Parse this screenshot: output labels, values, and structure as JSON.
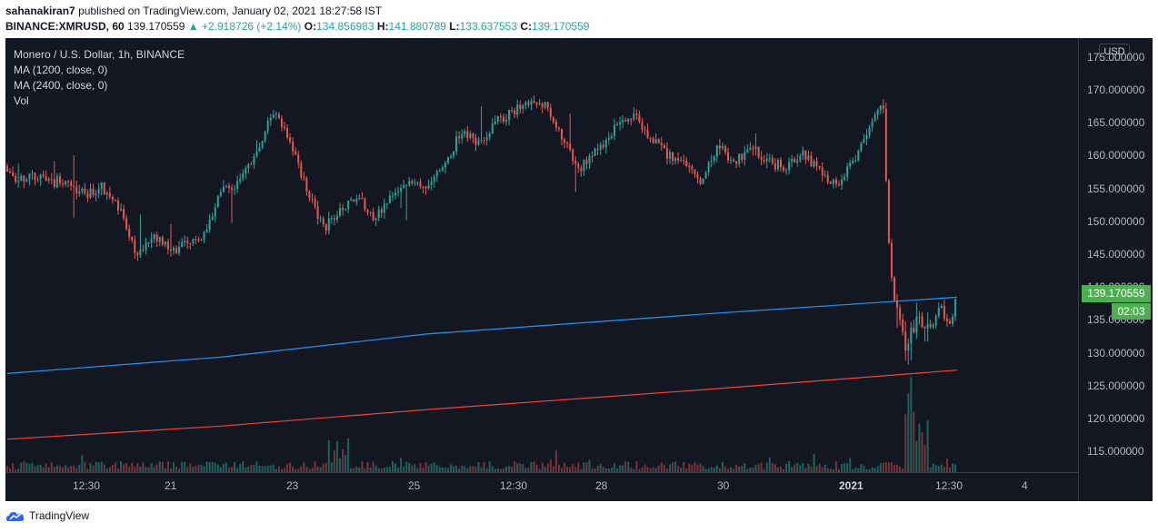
{
  "header": {
    "username": "sahanakiran7",
    "published_text": "published on TradingView.com, January 02, 2021 18:27:58 IST",
    "symbol": "BINANCE:XMRUSD, 60",
    "last": "139.170559",
    "change": "▲ +2.918726 (+2.14%)",
    "o_label": "O:",
    "o_value": "134.856983",
    "h_label": "H:",
    "h_value": "141.880789",
    "l_label": "L:",
    "l_value": "133.637553",
    "c_label": "C:",
    "c_value": "139.170559"
  },
  "legend": {
    "title": "Monero / U.S. Dollar, 1h, BINANCE",
    "ma1": "MA (1200, close, 0)",
    "ma2": "MA (2400, close, 0)",
    "vol": "Vol"
  },
  "axis": {
    "currency": "USD",
    "price_ticks": [
      "175.000000",
      "170.000000",
      "165.000000",
      "160.000000",
      "155.000000",
      "150.000000",
      "145.000000",
      "140.000000",
      "135.000000",
      "130.000000",
      "125.000000",
      "120.000000",
      "115.000000"
    ],
    "time_ticks": [
      {
        "label": "12:30",
        "bold": false
      },
      {
        "label": "21",
        "bold": false
      },
      {
        "label": "23",
        "bold": false
      },
      {
        "label": "25",
        "bold": false
      },
      {
        "label": "12:30",
        "bold": false
      },
      {
        "label": "28",
        "bold": false
      },
      {
        "label": "30",
        "bold": false
      },
      {
        "label": "2021",
        "bold": true
      },
      {
        "label": "12:30",
        "bold": false
      },
      {
        "label": "4",
        "bold": false
      }
    ],
    "last_price_label": "139.170559",
    "countdown": "02:03"
  },
  "colors": {
    "up": "#26a69a",
    "down": "#ef5350",
    "ma1200": "#2196f3",
    "ma2400": "#f44336",
    "background": "#131722",
    "last_price_badge": "#4caf50"
  },
  "footer": {
    "brand": "TradingView"
  },
  "chart_data": {
    "type": "candlestick",
    "title": "Monero / U.S. Dollar, 1h, BINANCE",
    "symbol": "BINANCE:XMRUSD",
    "interval": "1h",
    "ylim": [
      112,
      178
    ],
    "x_start": "2020-12-19 21:00",
    "x_end": "2021-01-02 18:00",
    "close_path": [
      [
        "2020-12-19 21:00",
        158.5
      ],
      [
        "2020-12-20 00:00",
        156.0
      ],
      [
        "2020-12-20 06:00",
        157.0
      ],
      [
        "2020-12-20 12:00",
        156.0
      ],
      [
        "2020-12-20 18:00",
        156.5
      ],
      [
        "2020-12-21 00:00",
        154.0
      ],
      [
        "2020-12-21 06:00",
        155.5
      ],
      [
        "2020-12-21 12:00",
        152.5
      ],
      [
        "2020-12-21 18:00",
        145.0
      ],
      [
        "2020-12-22 00:00",
        148.5
      ],
      [
        "2020-12-22 06:00",
        145.5
      ],
      [
        "2020-12-22 12:00",
        147.0
      ],
      [
        "2020-12-22 18:00",
        148.0
      ],
      [
        "2020-12-23 00:00",
        155.0
      ],
      [
        "2020-12-23 06:00",
        156.0
      ],
      [
        "2020-12-23 12:00",
        160.0
      ],
      [
        "2020-12-23 18:00",
        167.0
      ],
      [
        "2020-12-24 00:00",
        163.0
      ],
      [
        "2020-12-24 06:00",
        155.0
      ],
      [
        "2020-12-24 12:00",
        149.0
      ],
      [
        "2020-12-24 18:00",
        152.0
      ],
      [
        "2020-12-25 00:00",
        154.0
      ],
      [
        "2020-12-25 06:00",
        150.5
      ],
      [
        "2020-12-25 12:00",
        154.5
      ],
      [
        "2020-12-25 18:00",
        156.5
      ],
      [
        "2020-12-26 00:00",
        155.5
      ],
      [
        "2020-12-26 06:00",
        158.0
      ],
      [
        "2020-12-26 12:00",
        164.0
      ],
      [
        "2020-12-26 18:00",
        162.0
      ],
      [
        "2020-12-27 00:00",
        165.0
      ],
      [
        "2020-12-27 06:00",
        167.0
      ],
      [
        "2020-12-27 12:00",
        168.0
      ],
      [
        "2020-12-27 18:00",
        167.5
      ],
      [
        "2020-12-28 00:00",
        162.0
      ],
      [
        "2020-12-28 06:00",
        158.5
      ],
      [
        "2020-12-28 12:00",
        161.0
      ],
      [
        "2020-12-28 18:00",
        164.5
      ],
      [
        "2020-12-29 00:00",
        166.5
      ],
      [
        "2020-12-29 06:00",
        163.0
      ],
      [
        "2020-12-29 12:00",
        160.5
      ],
      [
        "2020-12-29 18:00",
        159.0
      ],
      [
        "2020-12-30 00:00",
        156.5
      ],
      [
        "2020-12-30 06:00",
        161.5
      ],
      [
        "2020-12-30 12:00",
        159.0
      ],
      [
        "2020-12-30 18:00",
        161.5
      ],
      [
        "2020-12-31 00:00",
        159.0
      ],
      [
        "2020-12-31 06:00",
        158.5
      ],
      [
        "2020-12-31 12:00",
        160.5
      ],
      [
        "2020-12-31 18:00",
        157.5
      ],
      [
        "2021-01-01 00:00",
        156.0
      ],
      [
        "2021-01-01 06:00",
        159.5
      ],
      [
        "2021-01-01 12:00",
        164.5
      ],
      [
        "2021-01-01 16:00",
        168.5
      ],
      [
        "2021-01-01 17:00",
        158.0
      ],
      [
        "2021-01-01 18:00",
        147.0
      ],
      [
        "2021-01-01 20:00",
        138.0
      ],
      [
        "2021-01-02 00:00",
        131.0
      ],
      [
        "2021-01-02 04:00",
        135.5
      ],
      [
        "2021-01-02 08:00",
        133.5
      ],
      [
        "2021-01-02 12:00",
        137.0
      ],
      [
        "2021-01-02 16:00",
        134.5
      ],
      [
        "2021-01-02 18:00",
        139.17
      ]
    ],
    "ma1200": [
      [
        "2020-12-19 21:00",
        127.0
      ],
      [
        "2020-12-23 00:00",
        129.5
      ],
      [
        "2020-12-26 00:00",
        133.0
      ],
      [
        "2020-12-30 00:00",
        136.0
      ],
      [
        "2021-01-02 18:00",
        138.6
      ]
    ],
    "ma2400": [
      [
        "2020-12-19 21:00",
        117.0
      ],
      [
        "2020-12-23 00:00",
        119.0
      ],
      [
        "2020-12-26 00:00",
        121.5
      ],
      [
        "2020-12-30 00:00",
        124.5
      ],
      [
        "2021-01-02 18:00",
        127.5
      ]
    ],
    "last": 139.170559,
    "open": 134.856983,
    "high": 141.880789,
    "low": 133.637553
  }
}
